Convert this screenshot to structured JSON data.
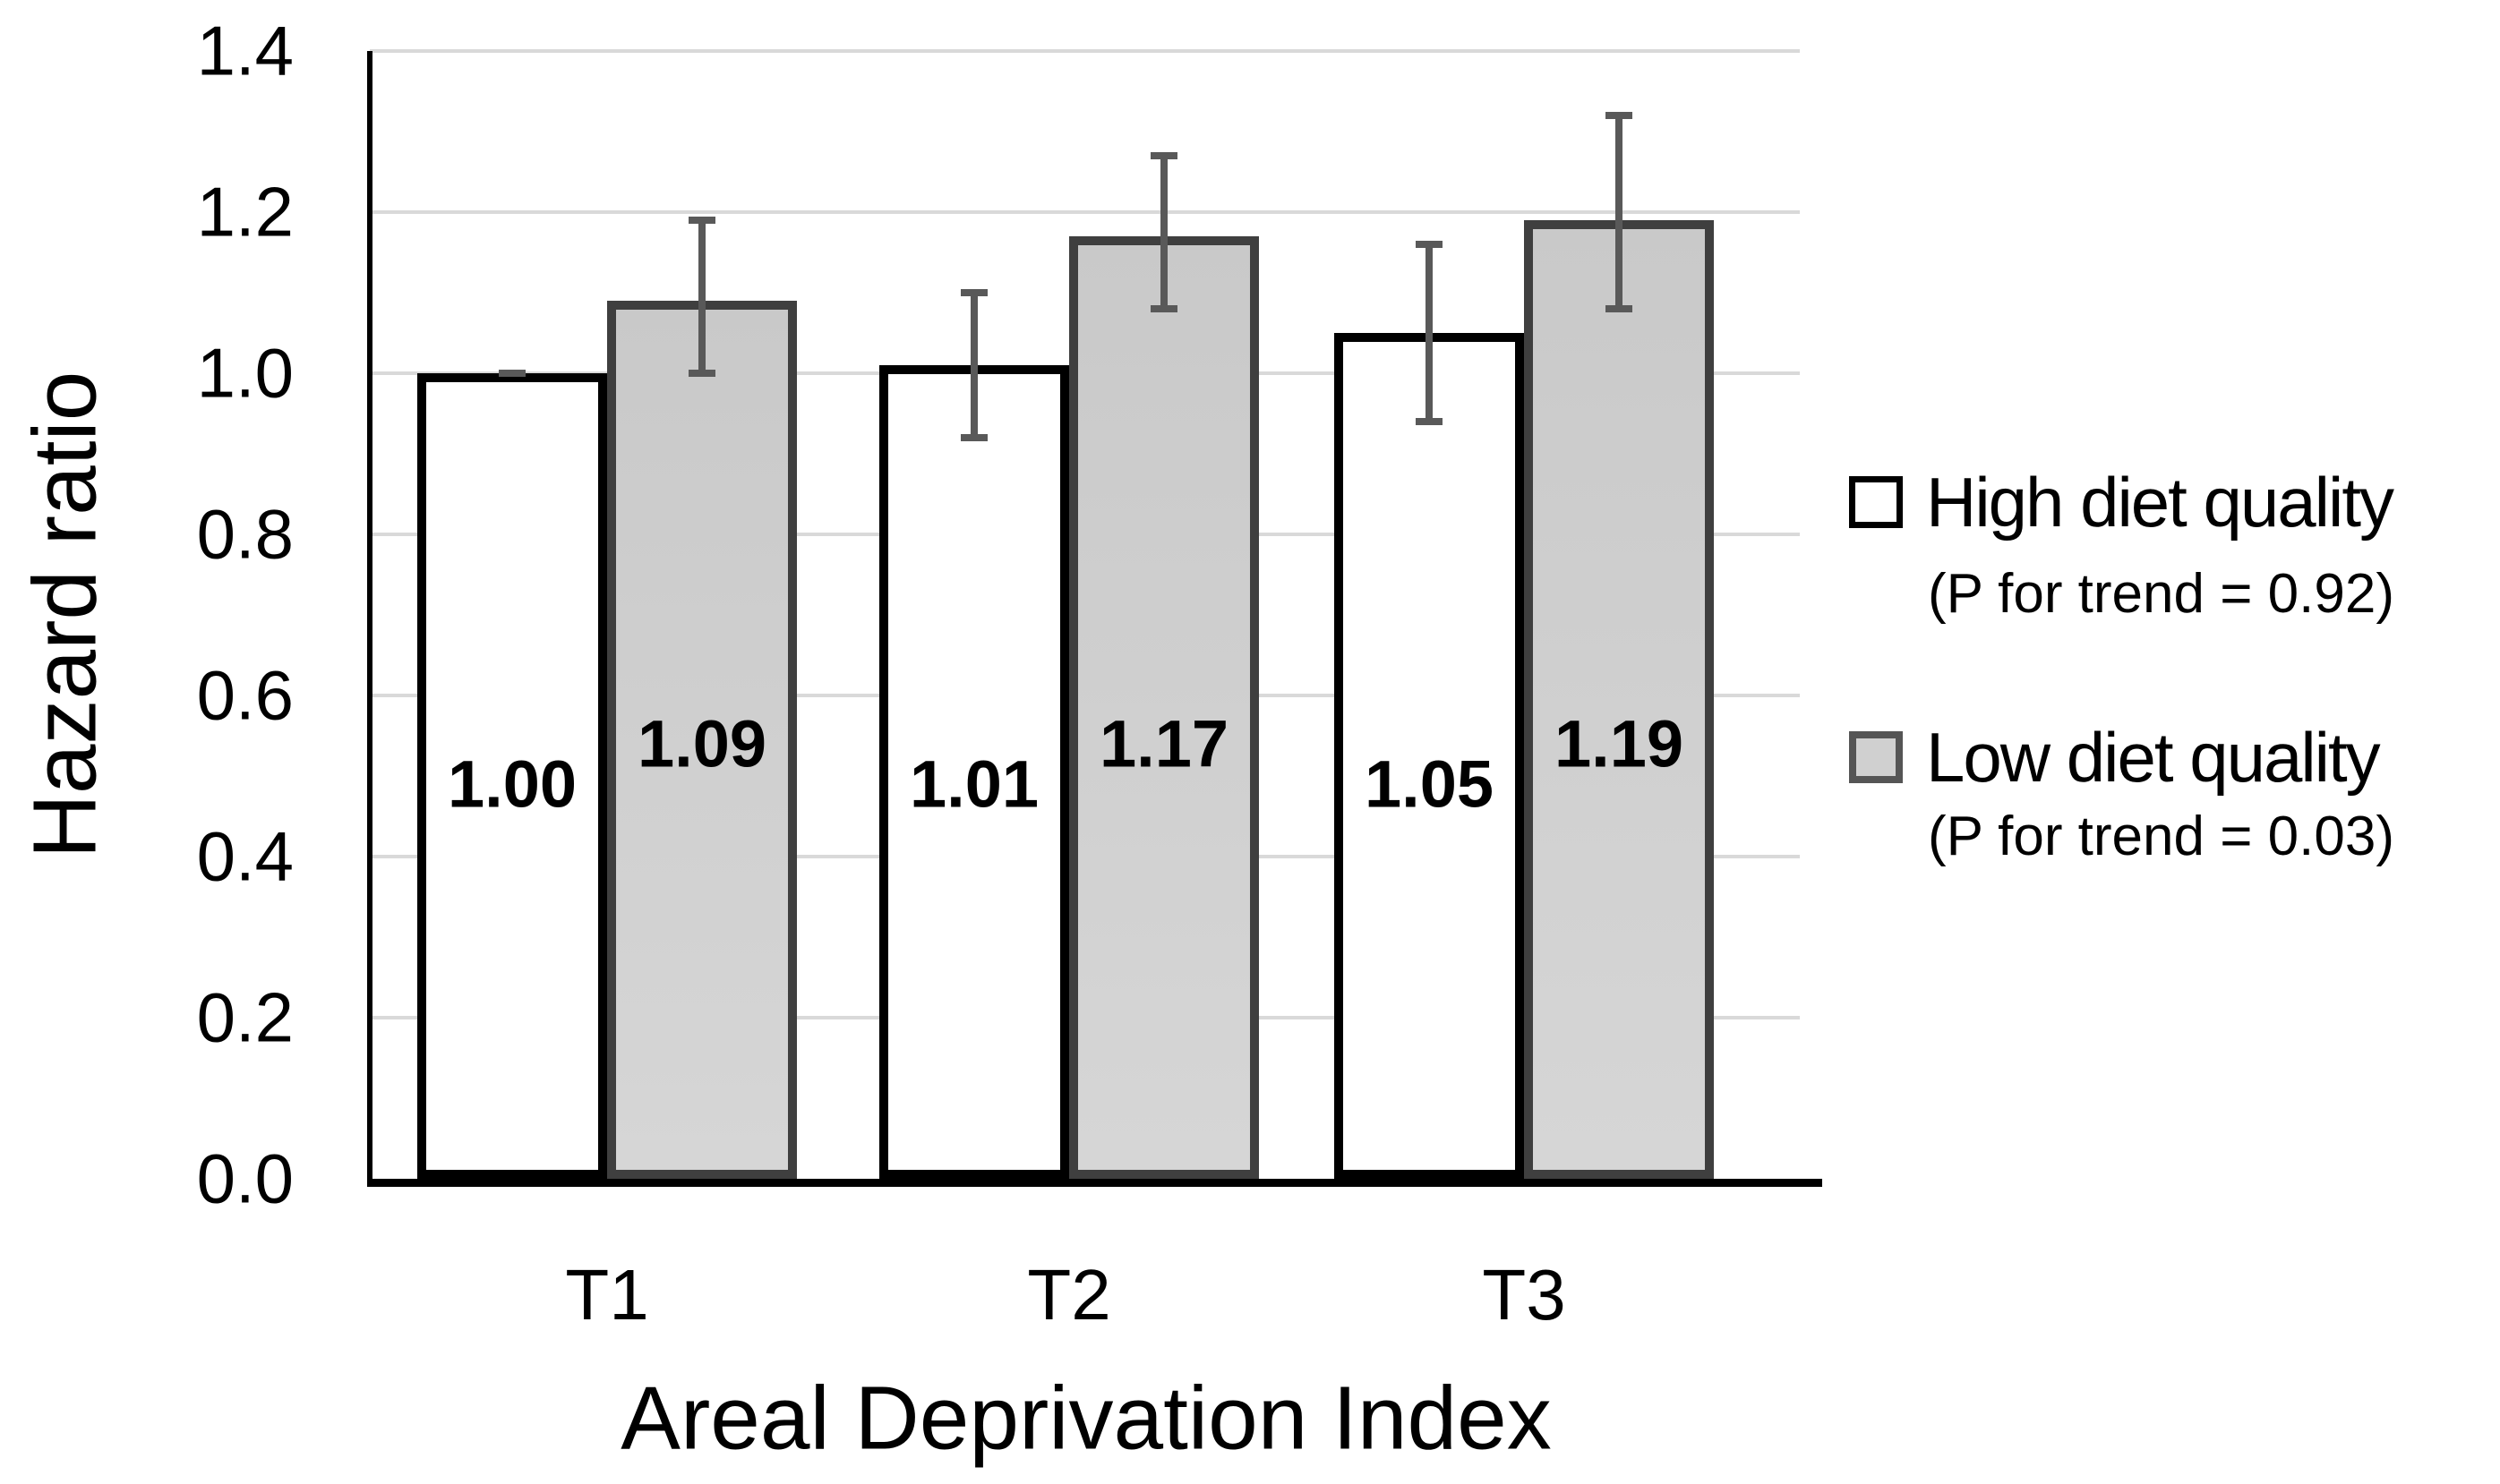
{
  "chart_data": {
    "type": "bar",
    "title": "",
    "xlabel": "Areal Deprivation Index",
    "ylabel": "Hazard ratio",
    "categories": [
      "T1",
      "T2",
      "T3"
    ],
    "series": [
      {
        "name": "High diet quality",
        "p_for_trend": "(P for trend = 0.92)",
        "style": "white",
        "fill": "#ffffff",
        "border": "#000000",
        "values": [
          1.0,
          1.01,
          1.05
        ],
        "labels": [
          "1.00",
          "1.01",
          "1.05"
        ],
        "ci_low": [
          1.0,
          0.92,
          0.94
        ],
        "ci_high": [
          1.0,
          1.1,
          1.16
        ]
      },
      {
        "name": "Low diet quality",
        "p_for_trend": "(P for trend = 0.03)",
        "style": "gray",
        "fill": "#d0d0d0",
        "border": "#3f3f3f",
        "values": [
          1.09,
          1.17,
          1.19
        ],
        "labels": [
          "1.09",
          "1.17",
          "1.19"
        ],
        "ci_low": [
          1.0,
          1.08,
          1.08
        ],
        "ci_high": [
          1.19,
          1.27,
          1.32
        ]
      }
    ],
    "ylim": [
      0.0,
      1.4
    ],
    "ytick_step": 0.2,
    "yticks": [
      "1.4",
      "1.2",
      "1.0",
      "0.8",
      "0.6",
      "0.4",
      "0.2",
      "0.0"
    ],
    "grid": true,
    "gridline_color": "#d9d9d9",
    "error_bar_color": "#595959",
    "legend_position": "right"
  },
  "axes": {
    "y_title": "Hazard ratio",
    "x_title": "Areal Deprivation Index"
  },
  "legend": {
    "items": [
      {
        "label": "High diet quality",
        "sub": "(P for trend = 0.92)",
        "swatch": "white"
      },
      {
        "label": "Low diet quality",
        "sub": "(P for trend = 0.03)",
        "swatch": "gray"
      }
    ]
  }
}
